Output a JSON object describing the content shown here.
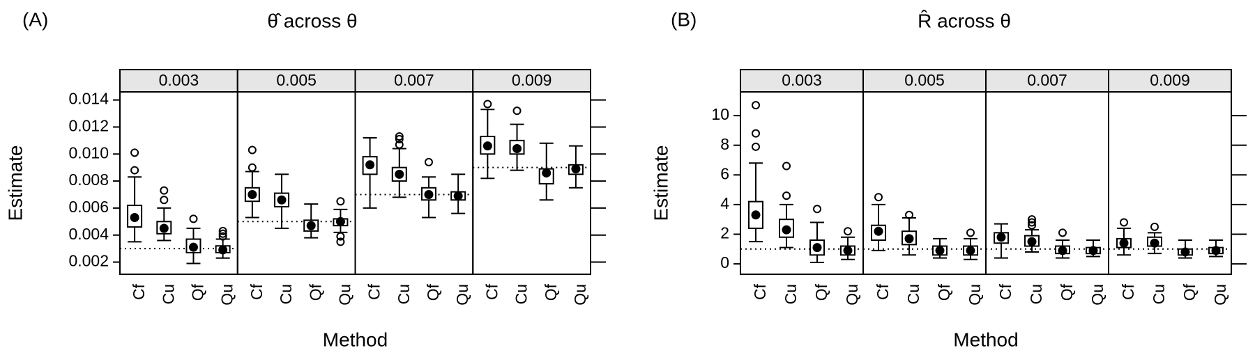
{
  "chart_data": [
    {
      "type": "box",
      "panel_label": "(A)",
      "title": "θ̂ across θ",
      "xlabel": "Method",
      "ylabel": "Estimate",
      "categories": [
        "Cf",
        "Cu",
        "Qf",
        "Qu"
      ],
      "ylim": [
        0.0011,
        0.0146
      ],
      "yticks": [
        0.002,
        0.004,
        0.006,
        0.008,
        {
          "value": 0.01,
          "label": "0.010"
        },
        0.012,
        0.014
      ],
      "facets": [
        {
          "label": 0.003,
          "reference": 0.003,
          "boxes": [
            {
              "min": 0.0035,
              "q1": 0.0046,
              "median": 0.0053,
              "q3": 0.0062,
              "max": 0.0083,
              "outliers": [
                0.0088,
                0.0101
              ]
            },
            {
              "min": 0.0036,
              "q1": 0.0041,
              "median": 0.0045,
              "q3": 0.005,
              "max": 0.006,
              "outliers": [
                0.0066,
                0.0073
              ]
            },
            {
              "min": 0.0019,
              "q1": 0.0027,
              "median": 0.0031,
              "q3": 0.0037,
              "max": 0.0045,
              "outliers": [
                0.0052
              ]
            },
            {
              "min": 0.0023,
              "q1": 0.0027,
              "median": 0.0029,
              "q3": 0.0032,
              "max": 0.0037,
              "outliers": [
                0.0039,
                0.0041,
                0.0043
              ]
            }
          ]
        },
        {
          "label": 0.005,
          "reference": 0.005,
          "boxes": [
            {
              "min": 0.0053,
              "q1": 0.0065,
              "median": 0.007,
              "q3": 0.0075,
              "max": 0.0087,
              "outliers": [
                0.009,
                0.0103
              ]
            },
            {
              "min": 0.0045,
              "q1": 0.0061,
              "median": 0.0066,
              "q3": 0.0071,
              "max": 0.0085,
              "outliers": []
            },
            {
              "min": 0.0038,
              "q1": 0.0043,
              "median": 0.0047,
              "q3": 0.0051,
              "max": 0.0063,
              "outliers": []
            },
            {
              "min": 0.0042,
              "q1": 0.0047,
              "median": 0.005,
              "q3": 0.0052,
              "max": 0.0059,
              "outliers": [
                0.0035,
                0.0039,
                0.0065
              ]
            }
          ]
        },
        {
          "label": 0.007,
          "reference": 0.007,
          "boxes": [
            {
              "min": 0.006,
              "q1": 0.0085,
              "median": 0.0092,
              "q3": 0.0098,
              "max": 0.0112,
              "outliers": []
            },
            {
              "min": 0.0068,
              "q1": 0.008,
              "median": 0.0085,
              "q3": 0.009,
              "max": 0.0104,
              "outliers": [
                0.0107,
                0.0111,
                0.0113
              ]
            },
            {
              "min": 0.0053,
              "q1": 0.0066,
              "median": 0.007,
              "q3": 0.0075,
              "max": 0.0083,
              "outliers": [
                0.0094
              ]
            },
            {
              "min": 0.0056,
              "q1": 0.0066,
              "median": 0.0069,
              "q3": 0.0072,
              "max": 0.0085,
              "outliers": []
            }
          ]
        },
        {
          "label": 0.009,
          "reference": 0.009,
          "boxes": [
            {
              "min": 0.0082,
              "q1": 0.01,
              "median": 0.0106,
              "q3": 0.0113,
              "max": 0.0133,
              "outliers": [
                0.0137
              ]
            },
            {
              "min": 0.0088,
              "q1": 0.01,
              "median": 0.0104,
              "q3": 0.011,
              "max": 0.0122,
              "outliers": [
                0.0132
              ]
            },
            {
              "min": 0.0066,
              "q1": 0.0078,
              "median": 0.0086,
              "q3": 0.0089,
              "max": 0.0108,
              "outliers": []
            },
            {
              "min": 0.0075,
              "q1": 0.0085,
              "median": 0.0089,
              "q3": 0.0092,
              "max": 0.0106,
              "outliers": []
            }
          ]
        }
      ]
    },
    {
      "type": "box",
      "panel_label": "(B)",
      "title": "R̂ across θ",
      "xlabel": "Method",
      "ylabel": "Estimate",
      "categories": [
        "Cf",
        "Cu",
        "Qf",
        "Qu"
      ],
      "ylim": [
        -0.7,
        11.6
      ],
      "yticks": [
        0,
        2,
        4,
        6,
        8,
        10
      ],
      "facets": [
        {
          "label": 0.003,
          "reference": 1,
          "boxes": [
            {
              "min": 1.5,
              "q1": 2.4,
              "median": 3.3,
              "q3": 4.2,
              "max": 6.8,
              "outliers": [
                7.9,
                8.8,
                10.7
              ]
            },
            {
              "min": 1.1,
              "q1": 1.8,
              "median": 2.3,
              "q3": 3.0,
              "max": 4.0,
              "outliers": [
                4.6,
                6.6
              ]
            },
            {
              "min": 0.1,
              "q1": 0.6,
              "median": 1.1,
              "q3": 1.6,
              "max": 2.8,
              "outliers": [
                3.7
              ]
            },
            {
              "min": 0.3,
              "q1": 0.6,
              "median": 0.9,
              "q3": 1.2,
              "max": 1.8,
              "outliers": [
                2.2
              ]
            }
          ]
        },
        {
          "label": 0.005,
          "reference": 1,
          "boxes": [
            {
              "min": 0.9,
              "q1": 1.6,
              "median": 2.2,
              "q3": 2.6,
              "max": 4.0,
              "outliers": [
                4.5
              ]
            },
            {
              "min": 0.6,
              "q1": 1.3,
              "median": 1.7,
              "q3": 2.2,
              "max": 3.1,
              "outliers": [
                3.3
              ]
            },
            {
              "min": 0.4,
              "q1": 0.6,
              "median": 0.9,
              "q3": 1.2,
              "max": 1.7,
              "outliers": []
            },
            {
              "min": 0.3,
              "q1": 0.6,
              "median": 0.9,
              "q3": 1.2,
              "max": 1.7,
              "outliers": [
                2.1
              ]
            }
          ]
        },
        {
          "label": 0.007,
          "reference": 1,
          "boxes": [
            {
              "min": 0.4,
              "q1": 1.4,
              "median": 1.8,
              "q3": 2.1,
              "max": 2.7,
              "outliers": []
            },
            {
              "min": 0.8,
              "q1": 1.2,
              "median": 1.5,
              "q3": 1.9,
              "max": 2.3,
              "outliers": [
                2.6,
                2.8,
                3.0
              ]
            },
            {
              "min": 0.4,
              "q1": 0.7,
              "median": 0.9,
              "q3": 1.2,
              "max": 1.6,
              "outliers": [
                2.1
              ]
            },
            {
              "min": 0.5,
              "q1": 0.7,
              "median": 0.9,
              "q3": 1.1,
              "max": 1.6,
              "outliers": []
            }
          ]
        },
        {
          "label": 0.009,
          "reference": 1,
          "boxes": [
            {
              "min": 0.6,
              "q1": 1.1,
              "median": 1.4,
              "q3": 1.7,
              "max": 2.4,
              "outliers": [
                2.8
              ]
            },
            {
              "min": 0.7,
              "q1": 1.2,
              "median": 1.4,
              "q3": 1.8,
              "max": 2.1,
              "outliers": [
                2.5
              ]
            },
            {
              "min": 0.4,
              "q1": 0.6,
              "median": 0.8,
              "q3": 1.0,
              "max": 1.6,
              "outliers": []
            },
            {
              "min": 0.5,
              "q1": 0.7,
              "median": 0.9,
              "q3": 1.1,
              "max": 1.6,
              "outliers": []
            }
          ]
        }
      ]
    }
  ]
}
